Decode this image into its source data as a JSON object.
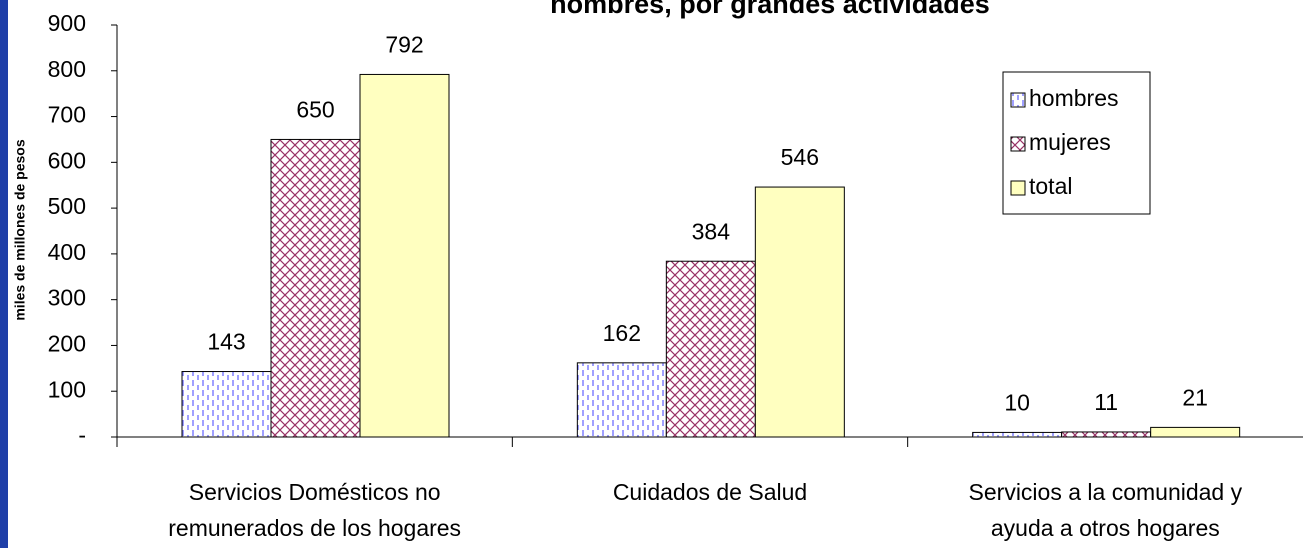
{
  "chart_data": {
    "type": "bar",
    "title": "hombres, por grandes actividades",
    "y_label": "miles de millones de pesos",
    "categories": [
      "Servicios Domésticos  no\nremunerados de los hogares",
      "Cuidados de Salud",
      "Servicios a la comunidad y\nayuda a otros hogares"
    ],
    "series": [
      {
        "name": "hombres",
        "color": "#8080ff",
        "fill_style": "dashed",
        "values": [
          143,
          162,
          10
        ]
      },
      {
        "name": "mujeres",
        "color": "#993366",
        "fill_style": "crosshatch",
        "values": [
          650,
          384,
          11
        ]
      },
      {
        "name": "total",
        "color": "#ffffc0",
        "fill_style": "solid",
        "values": [
          792,
          546,
          21
        ]
      }
    ],
    "ylim": [
      0,
      900
    ],
    "yticks": [
      {
        "value": 0,
        "label": "-"
      },
      100,
      200,
      300,
      400,
      500,
      600,
      700,
      800,
      900
    ],
    "legend": "upper right"
  }
}
